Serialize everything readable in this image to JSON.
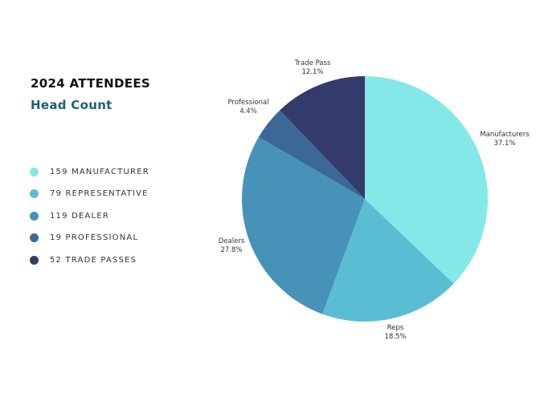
{
  "header": {
    "title": "2024 ATTENDEES",
    "subtitle": "Head Count"
  },
  "legend": [
    {
      "text": "159 MANUFACTURER",
      "color": "#84e8e8"
    },
    {
      "text": "79 REPRESENTATIVE",
      "color": "#5bbdd3"
    },
    {
      "text": "119 DEALER",
      "color": "#4792b8"
    },
    {
      "text": "19 PROFESSIONAL",
      "color": "#3a6997"
    },
    {
      "text": "52 TRADE PASSES",
      "color": "#333a6c"
    }
  ],
  "chart_data": {
    "type": "pie",
    "title": "2024 ATTENDEES",
    "subtitle": "Head Count",
    "legend_position": "left",
    "slices": [
      {
        "label": "Manufacturers",
        "percent_label": "37.1%",
        "value": 159,
        "percent": 37.1,
        "color": "#84e8e8"
      },
      {
        "label": "Reps",
        "percent_label": "18.5%",
        "value": 79,
        "percent": 18.5,
        "color": "#5bbdd3"
      },
      {
        "label": "Dealers",
        "percent_label": "27.8%",
        "value": 119,
        "percent": 27.8,
        "color": "#4792b8"
      },
      {
        "label": "Professional",
        "percent_label": "4.4%",
        "value": 19,
        "percent": 4.4,
        "color": "#3a6997"
      },
      {
        "label": "Trade Pass",
        "percent_label": "12.1%",
        "value": 52,
        "percent": 12.1,
        "color": "#333a6c"
      }
    ]
  }
}
